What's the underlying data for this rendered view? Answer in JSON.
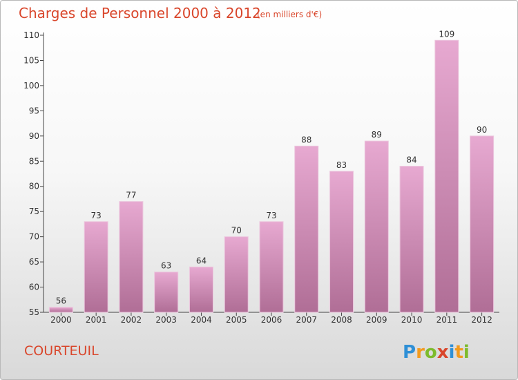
{
  "chart_data": {
    "type": "bar",
    "title": "Charges de Personnel 2000 à 2012",
    "subtitle": "(en milliers d'€)",
    "xlabel": "",
    "ylabel": "",
    "categories": [
      "2000",
      "2001",
      "2002",
      "2003",
      "2004",
      "2005",
      "2006",
      "2007",
      "2008",
      "2009",
      "2010",
      "2011",
      "2012"
    ],
    "values": [
      56,
      73,
      77,
      63,
      64,
      70,
      73,
      88,
      83,
      89,
      84,
      109,
      90
    ],
    "ylim": [
      55,
      110
    ],
    "yticks": [
      55,
      60,
      65,
      70,
      75,
      80,
      85,
      90,
      95,
      100,
      105,
      110
    ],
    "grid": false,
    "bar_color": "#c97fac"
  },
  "commune": "COURTEUIL",
  "logo": {
    "letters": [
      "P",
      "r",
      "o",
      "x",
      "i",
      "t",
      "i"
    ],
    "colors": [
      "#2e8fd6",
      "#f29a1e",
      "#7dbb2c",
      "#d9462b",
      "#2e8fd6",
      "#f29a1e",
      "#7dbb2c"
    ]
  }
}
